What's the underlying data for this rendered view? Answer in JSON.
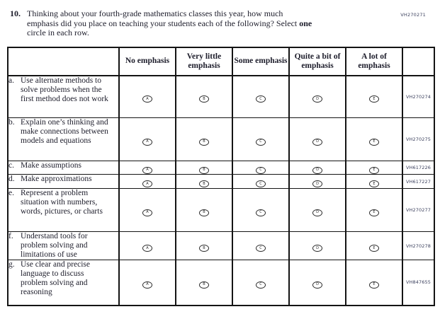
{
  "page_code": "VH270271",
  "question": {
    "number": "10.",
    "line1": "Thinking about your fourth-grade mathematics classes this year, how much",
    "line2": "emphasis did you place on teaching your students each of the following? Select ",
    "line2_bold": "one",
    "line3": "circle in each row."
  },
  "table": {
    "column_headers": [
      "No emphasis",
      "Very little emphasis",
      "Some emphasis",
      "Quite a bit of emphasis",
      "A lot of emphasis"
    ],
    "option_letters": [
      "A",
      "B",
      "C",
      "D",
      "E"
    ],
    "rows": [
      {
        "letter": "a.",
        "label": "Use alternate methods to solve problems when the first method does not work",
        "code": "VH270274"
      },
      {
        "letter": "b.",
        "label": "Explain one’s thinking and make connections between models and equations",
        "code": "VH270275"
      },
      {
        "letter": "c.",
        "label": "Make assumptions",
        "code": "VH617226"
      },
      {
        "letter": "d.",
        "label": "Make approximations",
        "code": "VH617227"
      },
      {
        "letter": "e.",
        "label": "Represent a problem situation with numbers, words, pictures, or charts",
        "code": "VH270277"
      },
      {
        "letter": "f.",
        "label": "Understand tools for problem solving and limitations of use",
        "code": "VH270278"
      },
      {
        "letter": "g.",
        "label": "Use clear and precise language to discuss problem solving and reasoning",
        "code": "VH847655"
      }
    ]
  },
  "colors": {
    "text": "#1d1d2b",
    "border": "#141414",
    "code_text": "#3a3f5c"
  }
}
